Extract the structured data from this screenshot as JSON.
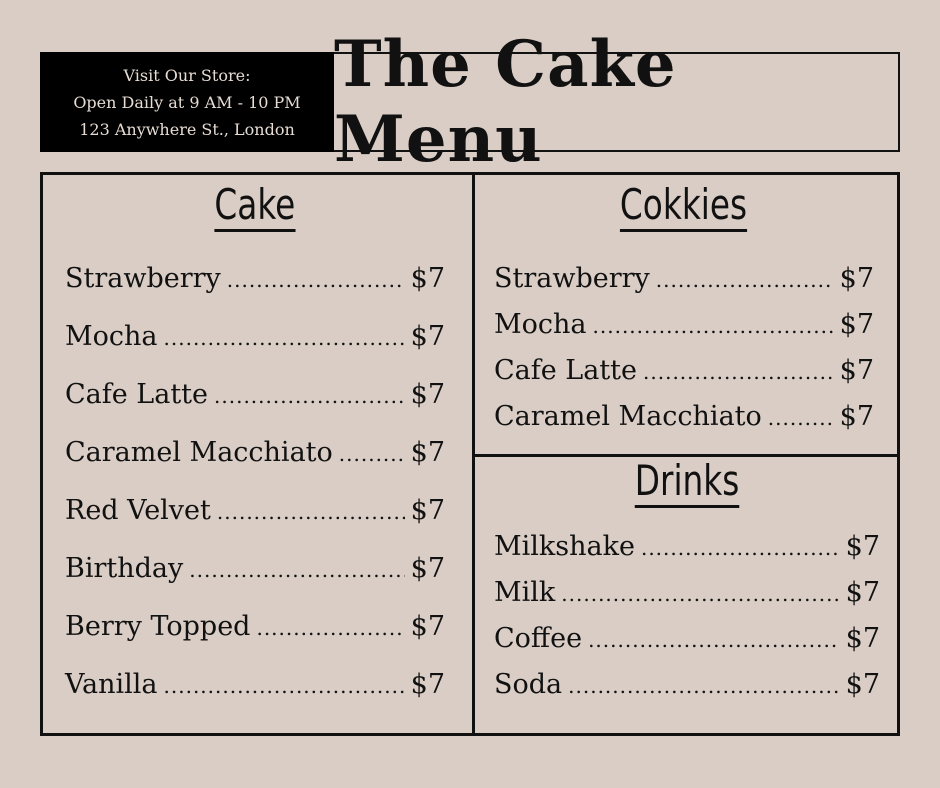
{
  "store": {
    "line1": "Visit Our Store:",
    "line2": "Open Daily at 9 AM - 10 PM",
    "line3": "123 Anywhere St., London"
  },
  "title": "The Cake Menu",
  "colors": {
    "background": "#d9cdc5",
    "panel": "#000000",
    "text": "#111111"
  },
  "cake": {
    "title": "Cake",
    "items": [
      {
        "name": "Strawberry",
        "price": "$7"
      },
      {
        "name": "Mocha",
        "price": "$7"
      },
      {
        "name": "Cafe Latte",
        "price": "$7"
      },
      {
        "name": "Caramel Macchiato",
        "price": "$7"
      },
      {
        "name": "Red Velvet",
        "price": "$7"
      },
      {
        "name": "Birthday",
        "price": "$7"
      },
      {
        "name": "Berry Topped",
        "price": "$7"
      },
      {
        "name": "Vanilla",
        "price": "$7"
      }
    ]
  },
  "cookies": {
    "title": "Cokkies",
    "items": [
      {
        "name": "Strawberry",
        "price": "$7"
      },
      {
        "name": "Mocha",
        "price": "$7"
      },
      {
        "name": "Cafe Latte",
        "price": "$7"
      },
      {
        "name": "Caramel Macchiato",
        "price": "$7"
      }
    ]
  },
  "drinks": {
    "title": "Drinks",
    "items": [
      {
        "name": "Milkshake",
        "price": "$7"
      },
      {
        "name": "Milk",
        "price": "$7"
      },
      {
        "name": "Coffee",
        "price": "$7"
      },
      {
        "name": "Soda",
        "price": "$7"
      }
    ]
  }
}
